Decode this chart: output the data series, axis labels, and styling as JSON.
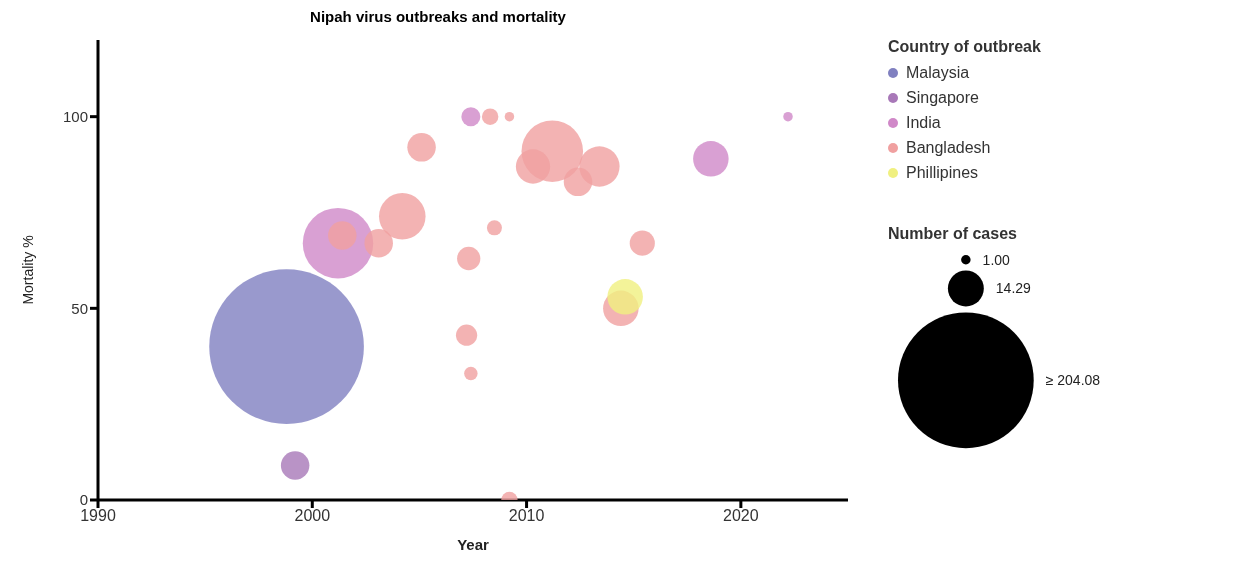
{
  "chart_data": {
    "type": "bubble",
    "title": "Nipah virus outbreaks and mortality",
    "xlabel": "Year",
    "ylabel": "Mortality %",
    "legend_title": "Country of outbreak",
    "annotations": [
      "Number of cases"
    ],
    "xlim": [
      1990,
      2025
    ],
    "xticks": [
      1990,
      2000,
      2010,
      2020
    ],
    "ylim": [
      0,
      120
    ],
    "yticks": [
      0,
      50,
      100
    ],
    "legend": "top right",
    "size_legend": [
      {
        "value": 1,
        "label": "1.00"
      },
      14.29,
      {
        "value": 204.08,
        "label": "≥ 204.08"
      }
    ],
    "series": [
      {
        "name": "Malaysia",
        "color": "#8080c0",
        "x": [
          1998.8
        ],
        "values": [
          40
        ],
        "sizes": [
          265
        ]
      },
      {
        "name": "Singapore",
        "color": "#a878b8",
        "x": [
          1999.2
        ],
        "values": [
          9
        ],
        "sizes": [
          9
        ]
      },
      {
        "name": "India",
        "color": "#d088c8",
        "x": [
          2001.2,
          2007.4,
          2018.6,
          2022.2
        ],
        "values": [
          67,
          100,
          89,
          100
        ],
        "sizes": [
          55,
          4,
          14,
          1
        ]
      },
      {
        "name": "Bangladesh",
        "color": "#f0a0a0",
        "x": [
          2001.4,
          2003.1,
          2004.2,
          2005.1,
          2008.3,
          2009.2,
          2011.2,
          2010.3,
          2013.4,
          2012.4,
          2008.5,
          2007.3,
          2015.4,
          2014.4,
          2007.2,
          2007.4,
          2009.2
        ],
        "values": [
          69,
          67,
          74,
          92,
          100,
          100,
          91,
          87,
          87,
          83,
          71,
          63,
          67,
          50,
          43,
          33,
          0
        ],
        "sizes": [
          9,
          9,
          24,
          9,
          3,
          1,
          42,
          13,
          18,
          9,
          2.5,
          6,
          7,
          14,
          5,
          2,
          3
        ]
      },
      {
        "name": "Phillipines",
        "color": "#f0f080",
        "x": [
          2014.6
        ],
        "values": [
          53
        ],
        "sizes": [
          14
        ]
      }
    ]
  }
}
